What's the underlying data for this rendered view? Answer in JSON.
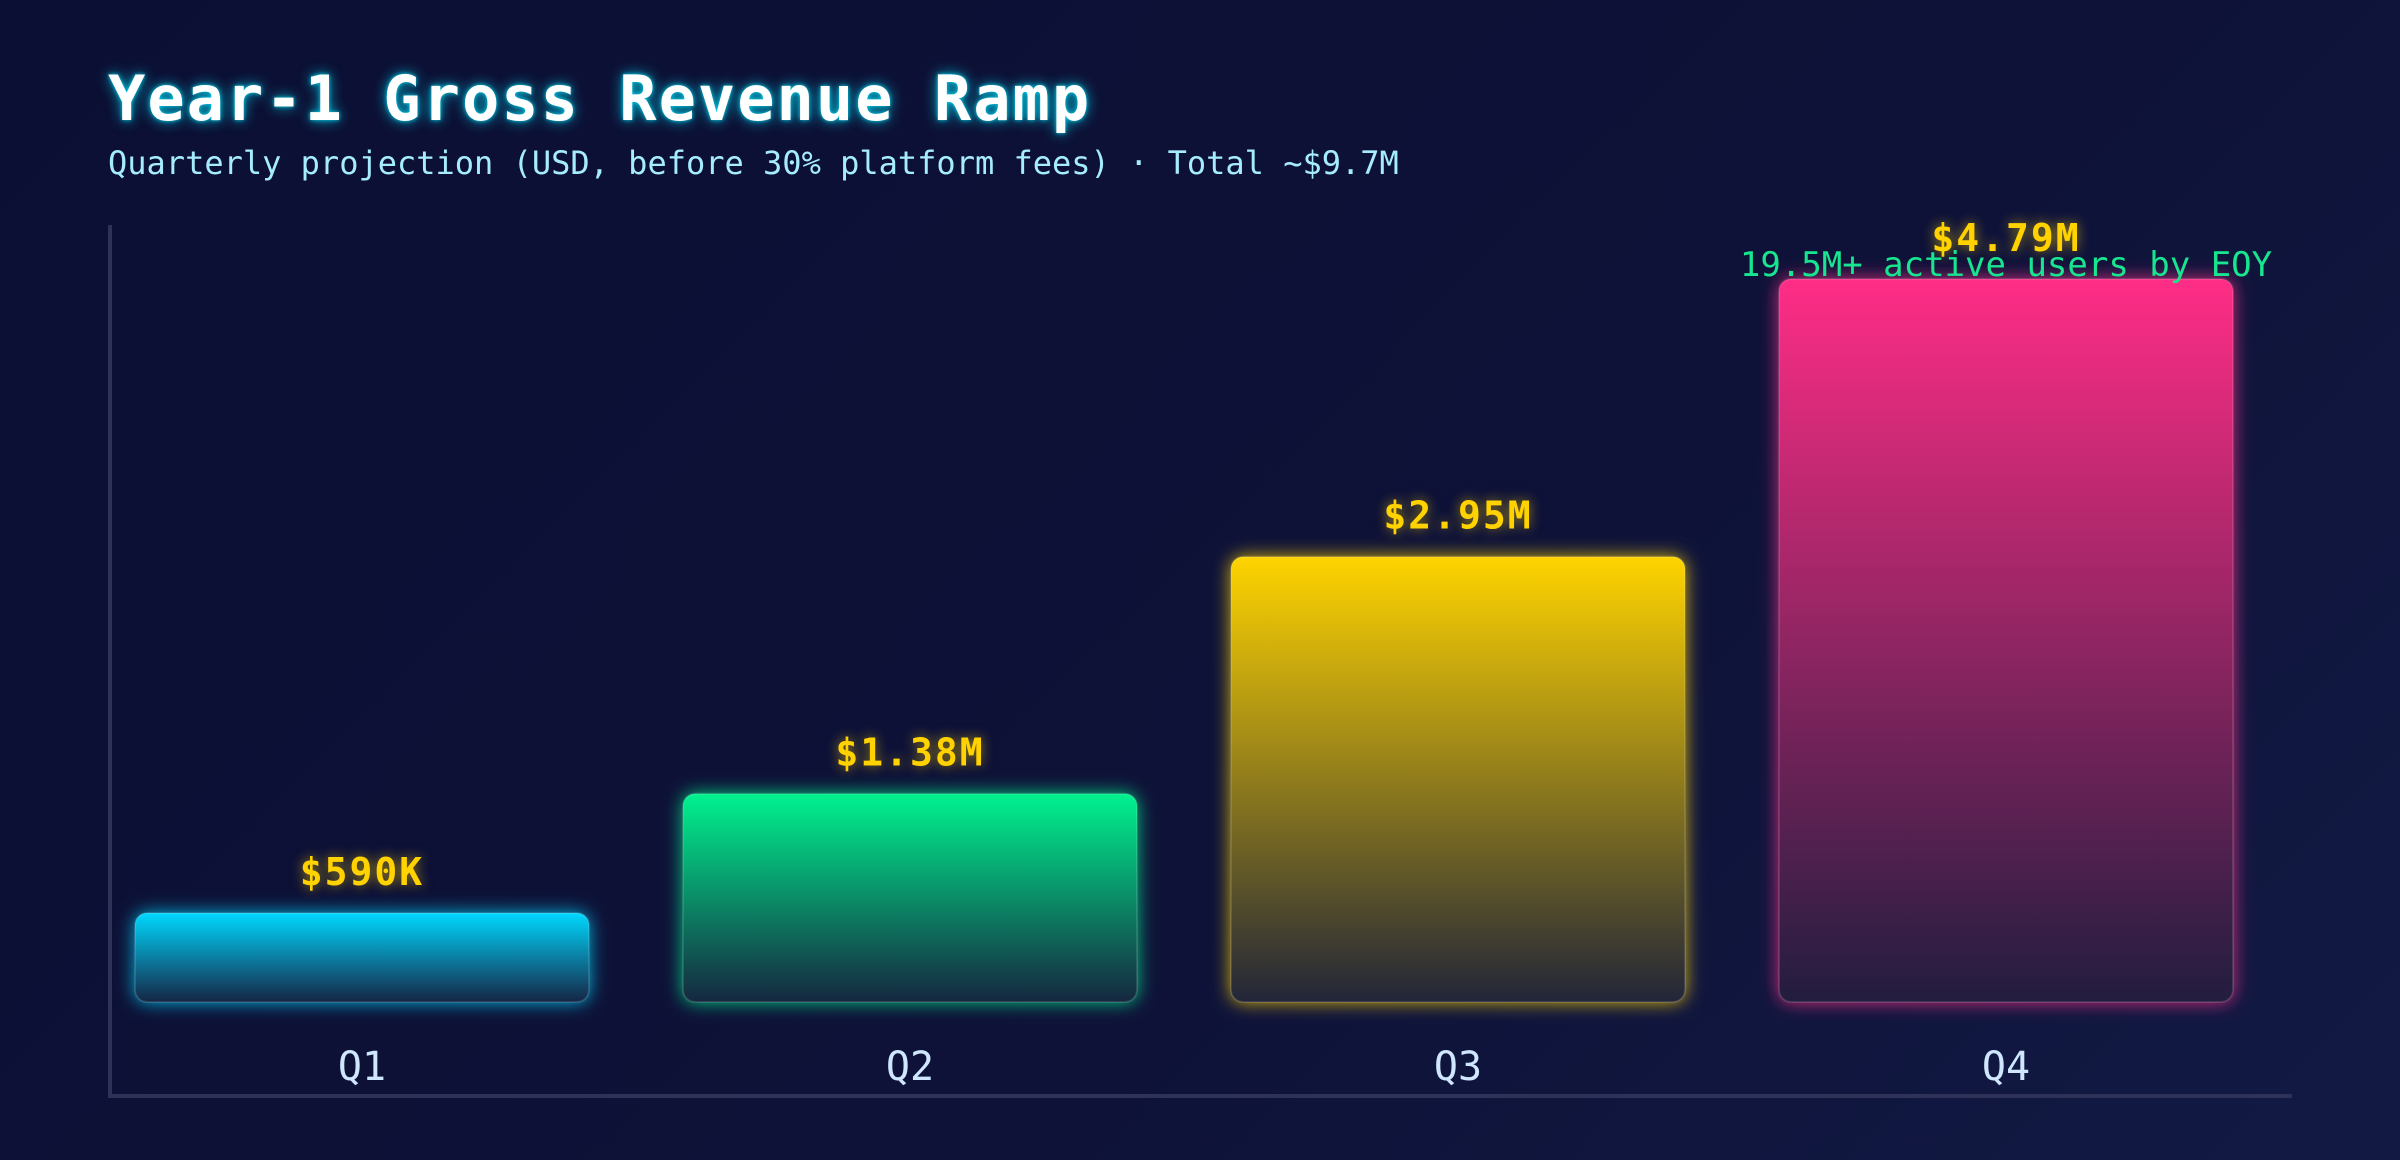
{
  "title": "Year-1 Gross Revenue Ramp",
  "subtitle": "Quarterly projection (USD, before 30% platform fees) · Total ~$9.7M",
  "annotation": "19.5M+ active users by EOY",
  "colors": {
    "background": "#0b0f33",
    "axis": "#2f3258",
    "value_label": "#ffd200",
    "category_label": "#cfe6ff",
    "annotation": "#18e58f",
    "bars": [
      "#00d8ff",
      "#00f28f",
      "#ffd400",
      "#ff2d86"
    ]
  },
  "chart_data": {
    "type": "bar",
    "categories": [
      "Q1",
      "Q2",
      "Q3",
      "Q4"
    ],
    "values": [
      0.59,
      1.38,
      2.95,
      4.79
    ],
    "units": "USD millions",
    "data_labels": [
      "$590K",
      "$1.38M",
      "$2.95M",
      "$4.79M"
    ],
    "ylim": [
      0,
      5
    ],
    "grid": false,
    "legend": "none"
  }
}
